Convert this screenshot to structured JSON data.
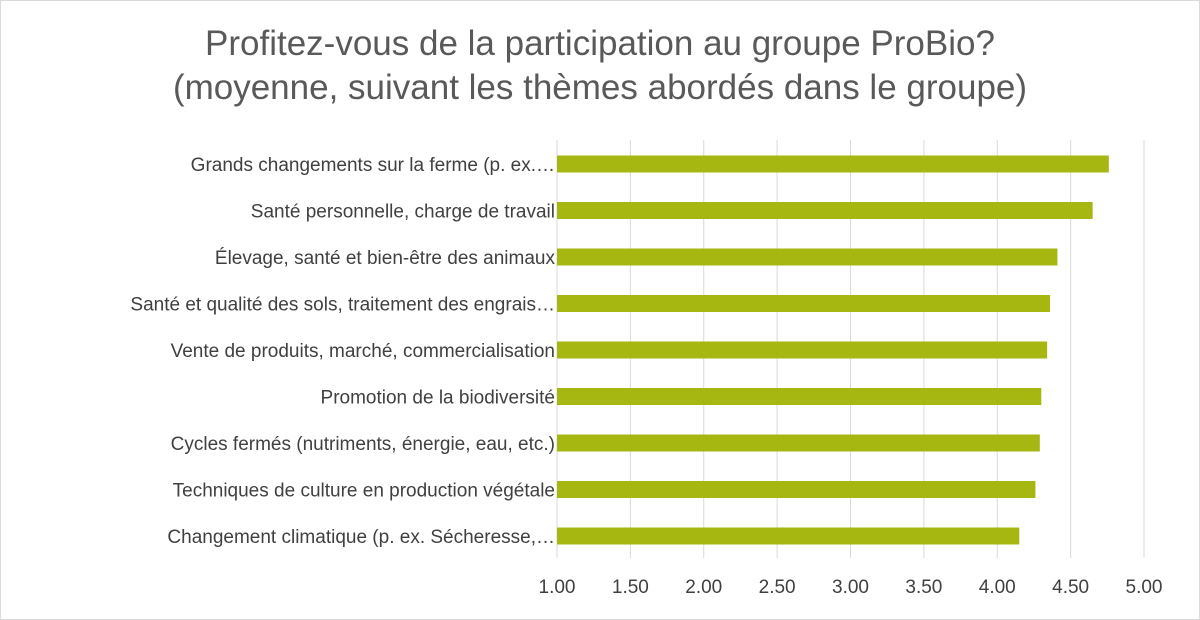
{
  "chart_data": {
    "type": "bar",
    "orientation": "horizontal",
    "title": "Profitez-vous de la participation au groupe ProBio?",
    "subtitle": "(moyenne, suivant les thèmes abordés dans le groupe)",
    "categories": [
      "Grands changements sur la ferme (p. ex.…",
      "Santé personnelle, charge de travail",
      "Élevage, santé et bien-être des animaux",
      "Santé et qualité des sols, traitement des engrais…",
      "Vente de produits, marché, commercialisation",
      "Promotion de la biodiversité",
      "Cycles fermés (nutriments, énergie, eau, etc.)",
      "Techniques de culture en production végétale",
      "Changement climatique (p. ex. Sécheresse,…"
    ],
    "values": [
      4.76,
      4.65,
      4.41,
      4.36,
      4.34,
      4.3,
      4.29,
      4.26,
      4.15
    ],
    "xlim": [
      1.0,
      5.0
    ],
    "xticks": [
      "1.00",
      "1.50",
      "2.00",
      "2.50",
      "3.00",
      "3.50",
      "4.00",
      "4.50",
      "5.00"
    ],
    "xtick_values": [
      1.0,
      1.5,
      2.0,
      2.5,
      3.0,
      3.5,
      4.0,
      4.5,
      5.0
    ],
    "bar_color": "#a5b710",
    "grid": true,
    "legend": "none"
  }
}
